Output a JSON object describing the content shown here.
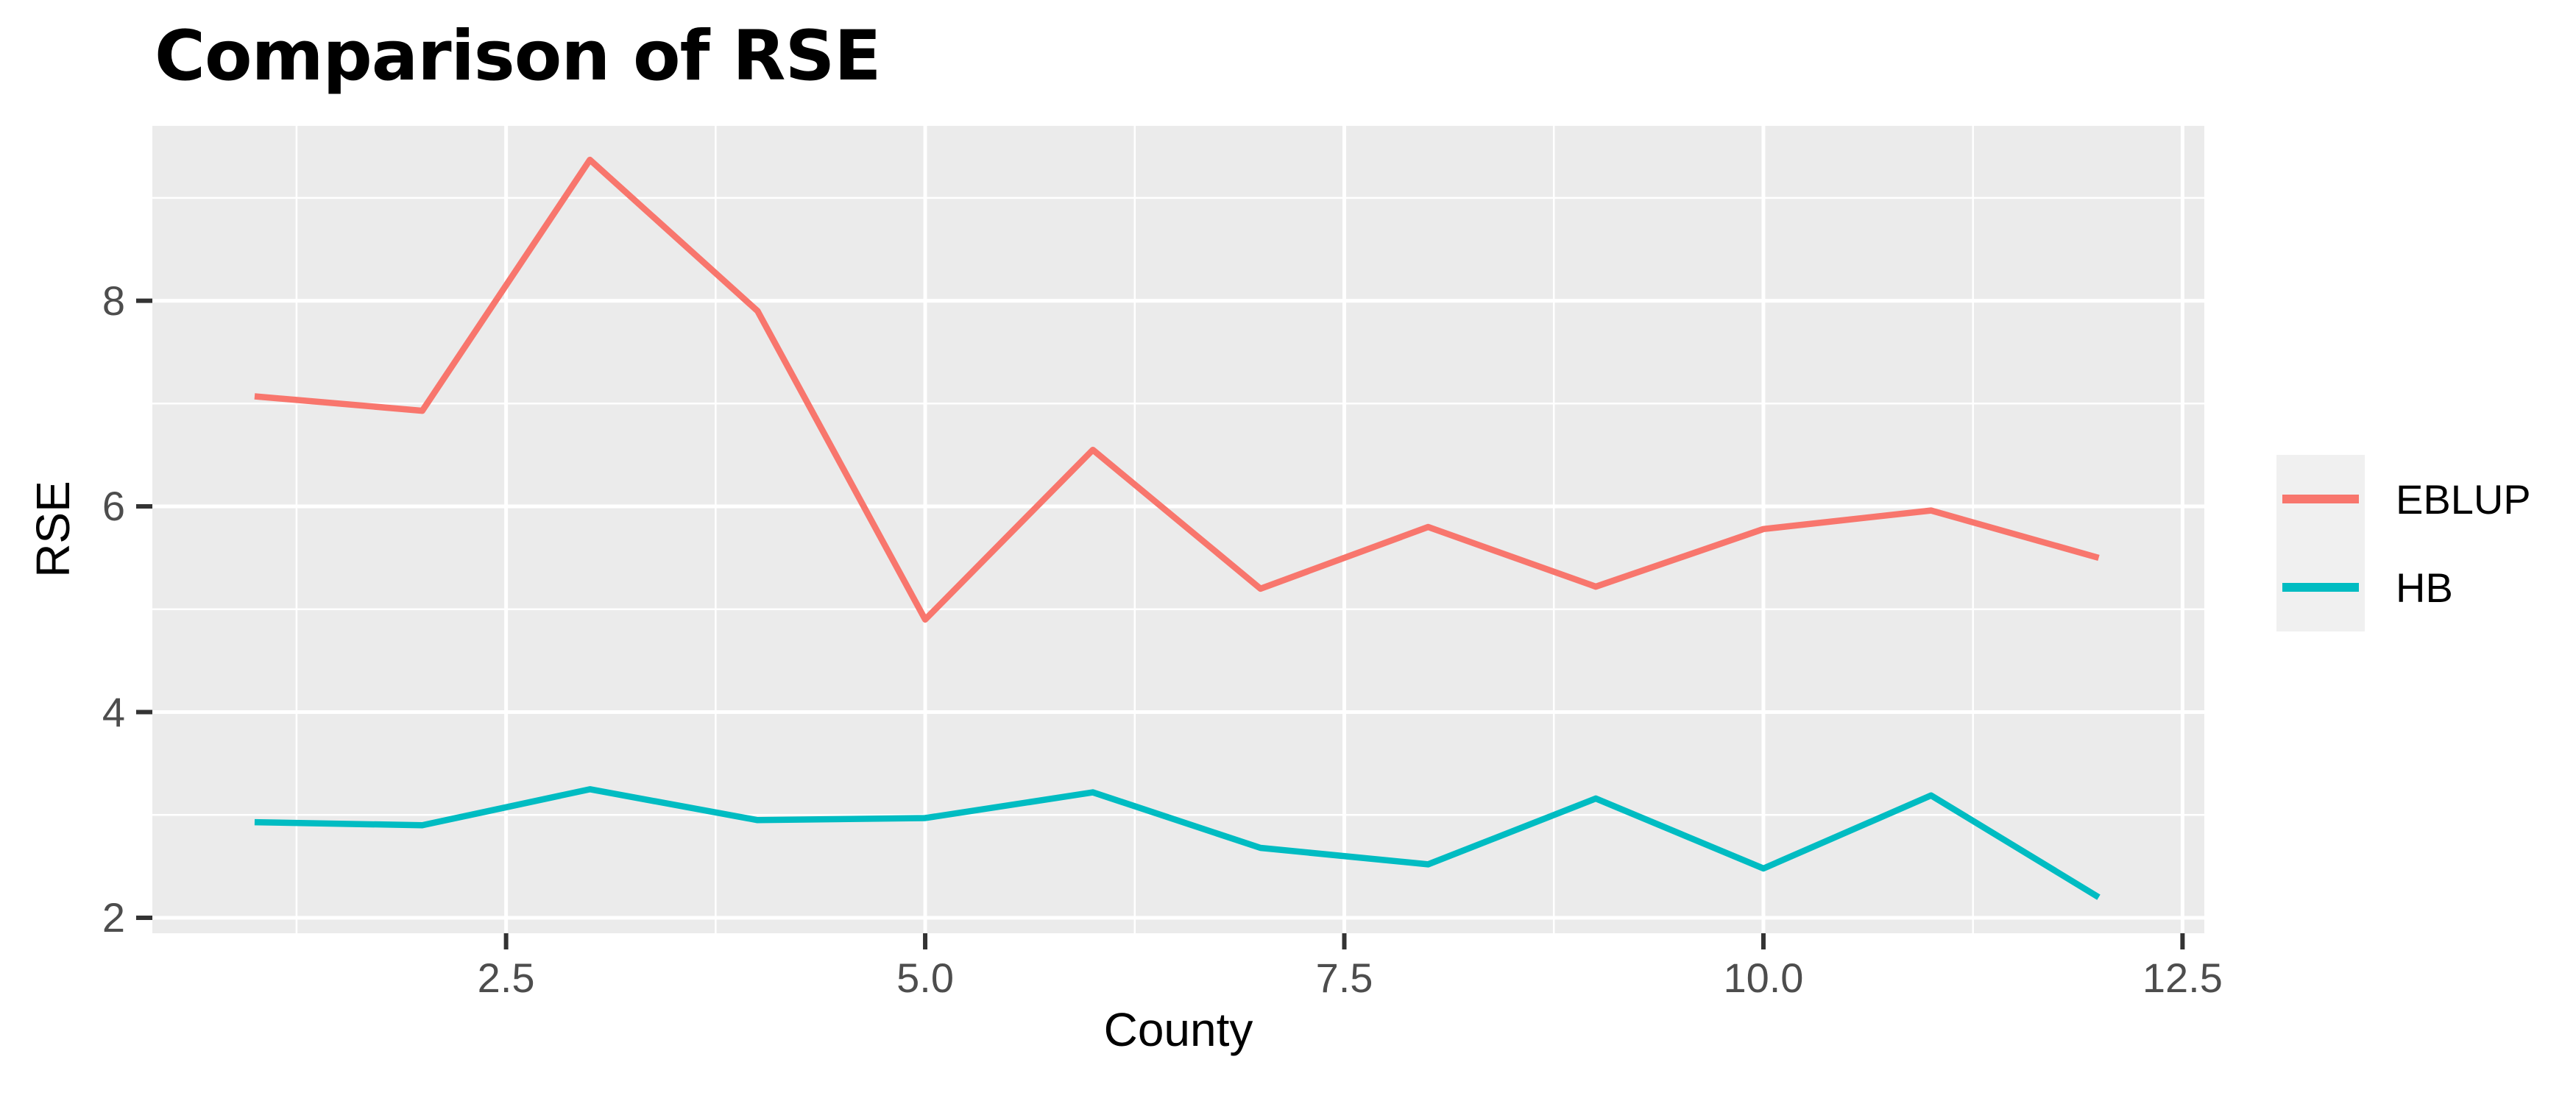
{
  "title": "Comparison of RSE",
  "chart_data": {
    "type": "line",
    "xlabel": "County",
    "ylabel": "RSE",
    "x": [
      1,
      2,
      3,
      4,
      5,
      6,
      7,
      8,
      9,
      10,
      11,
      12
    ],
    "series": [
      {
        "name": "EBLUP",
        "color": "#F8766D",
        "values": [
          7.07,
          6.93,
          9.37,
          7.9,
          4.9,
          6.55,
          5.2,
          5.8,
          5.22,
          5.78,
          5.96,
          5.5
        ]
      },
      {
        "name": "HB",
        "color": "#00BCC2",
        "values": [
          2.93,
          2.9,
          3.25,
          2.95,
          2.97,
          3.22,
          2.68,
          2.52,
          3.16,
          2.48,
          3.19,
          2.2
        ]
      }
    ],
    "xlim": [
      0.39,
      12.63
    ],
    "ylim": [
      1.85,
      9.7
    ],
    "x_ticks": [
      {
        "value": 2.5,
        "label": "2.5"
      },
      {
        "value": 5.0,
        "label": "5.0"
      },
      {
        "value": 7.5,
        "label": "7.5"
      },
      {
        "value": 10.0,
        "label": "10.0"
      },
      {
        "value": 12.5,
        "label": "12.5"
      }
    ],
    "y_ticks": [
      {
        "value": 2,
        "label": "2"
      },
      {
        "value": 4,
        "label": "4"
      },
      {
        "value": 6,
        "label": "6"
      },
      {
        "value": 8,
        "label": "8"
      }
    ],
    "x_minor": [
      1.25,
      3.75,
      6.25,
      8.75,
      11.25
    ],
    "y_minor": [
      3,
      5,
      7,
      9
    ],
    "grid": true,
    "legend_position": "right",
    "panel_bg": "#EBEBEB",
    "grid_color": "#FFFFFF",
    "tick_color": "#333333",
    "tick_label_color": "#4D4D4D"
  }
}
